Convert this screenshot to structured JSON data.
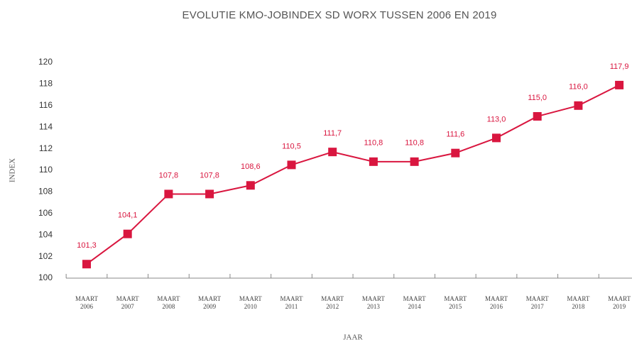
{
  "chart_data": {
    "type": "line",
    "title": "EVOLUTIE KMO-JOBINDEX SD WORX TUSSEN 2006 EN 2019",
    "y_label": "INDEX",
    "x_label": "JAAR",
    "categories": [
      [
        "MAART",
        "2006"
      ],
      [
        "MAART",
        "2007"
      ],
      [
        "MAART",
        "2008"
      ],
      [
        "MAART",
        "2009"
      ],
      [
        "MAART",
        "2010"
      ],
      [
        "MAART",
        "2011"
      ],
      [
        "MAART",
        "2012"
      ],
      [
        "MAART",
        "2013"
      ],
      [
        "MAART",
        "2014"
      ],
      [
        "MAART",
        "2015"
      ],
      [
        "MAART",
        "2016"
      ],
      [
        "MAART",
        "2017"
      ],
      [
        "MAART",
        "2018"
      ],
      [
        "MAART",
        "2019"
      ]
    ],
    "values": [
      101.3,
      104.1,
      107.8,
      107.8,
      108.6,
      110.5,
      111.7,
      110.8,
      110.8,
      111.6,
      113.0,
      115.0,
      116.0,
      117.9
    ],
    "value_labels": [
      "101,3",
      "104,1",
      "107,8",
      "107,8",
      "108,6",
      "110,5",
      "111,7",
      "110,8",
      "110,8",
      "111,6",
      "113,0",
      "115,0",
      "116,0",
      "117,9"
    ],
    "color": "#d9163f",
    "ylim": [
      100,
      120
    ],
    "yticks": [
      100,
      102,
      104,
      106,
      108,
      110,
      112,
      114,
      116,
      118,
      120
    ]
  }
}
